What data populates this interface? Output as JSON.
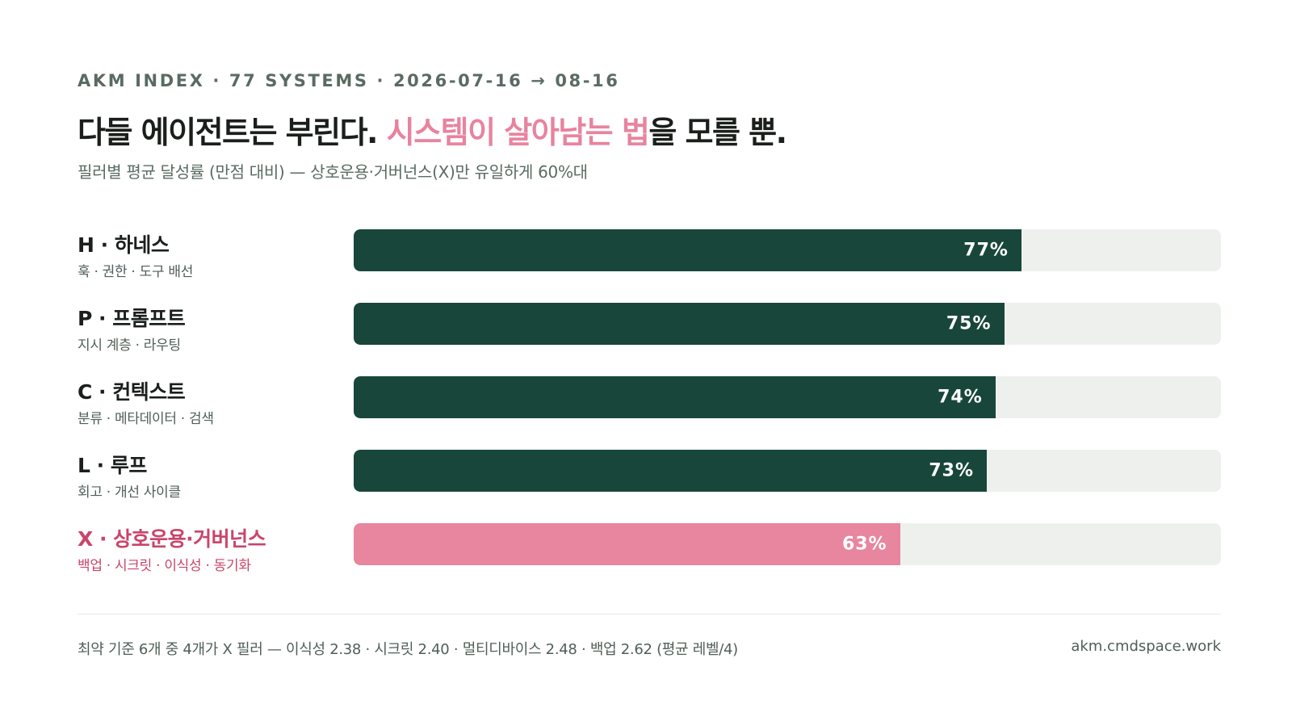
{
  "header": {
    "kicker": "AKM INDEX · 77 SYSTEMS · 2026-07-16 → 08-16",
    "title_part1": "다들 에이전트는 부린다. ",
    "title_highlight": "시스템이 살아남는 법",
    "title_part2": "을 모를 뿐.",
    "subtitle": "필러별 평균 달성률 (만점 대비) — 상호운용·거버넌스(X)만 유일하게 60%대"
  },
  "colors": {
    "bar": "#18463a",
    "bar_accent": "#e8859f",
    "track": "#eef0ee",
    "highlight_text": "#e8839e",
    "accent_label": "#c9456a"
  },
  "chart_data": {
    "type": "bar",
    "orientation": "horizontal",
    "categories": [
      "H · 하네스",
      "P · 프롬프트",
      "C · 컨텍스트",
      "L · 루프",
      "X · 상호운용·거버넌스"
    ],
    "descriptions": [
      "훅 · 권한 · 도구 배선",
      "지시 계층 · 라우팅",
      "분류 · 메타데이터 · 검색",
      "회고 · 개선 사이클",
      "백업 · 시크릿 · 이식성 · 동기화"
    ],
    "values": [
      77,
      75,
      74,
      73,
      63
    ],
    "value_labels": [
      "77%",
      "75%",
      "74%",
      "73%",
      "63%"
    ],
    "highlighted_index": 4,
    "xlim": [
      0,
      100
    ]
  },
  "footer": {
    "note": "최약 기준 6개 중 4개가 X 필러 — 이식성 2.38 · 시크릿 2.40 · 멀티디바이스 2.48 · 백업 2.62 (평균 레벨/4)",
    "site": "akm.cmdspace.work"
  }
}
